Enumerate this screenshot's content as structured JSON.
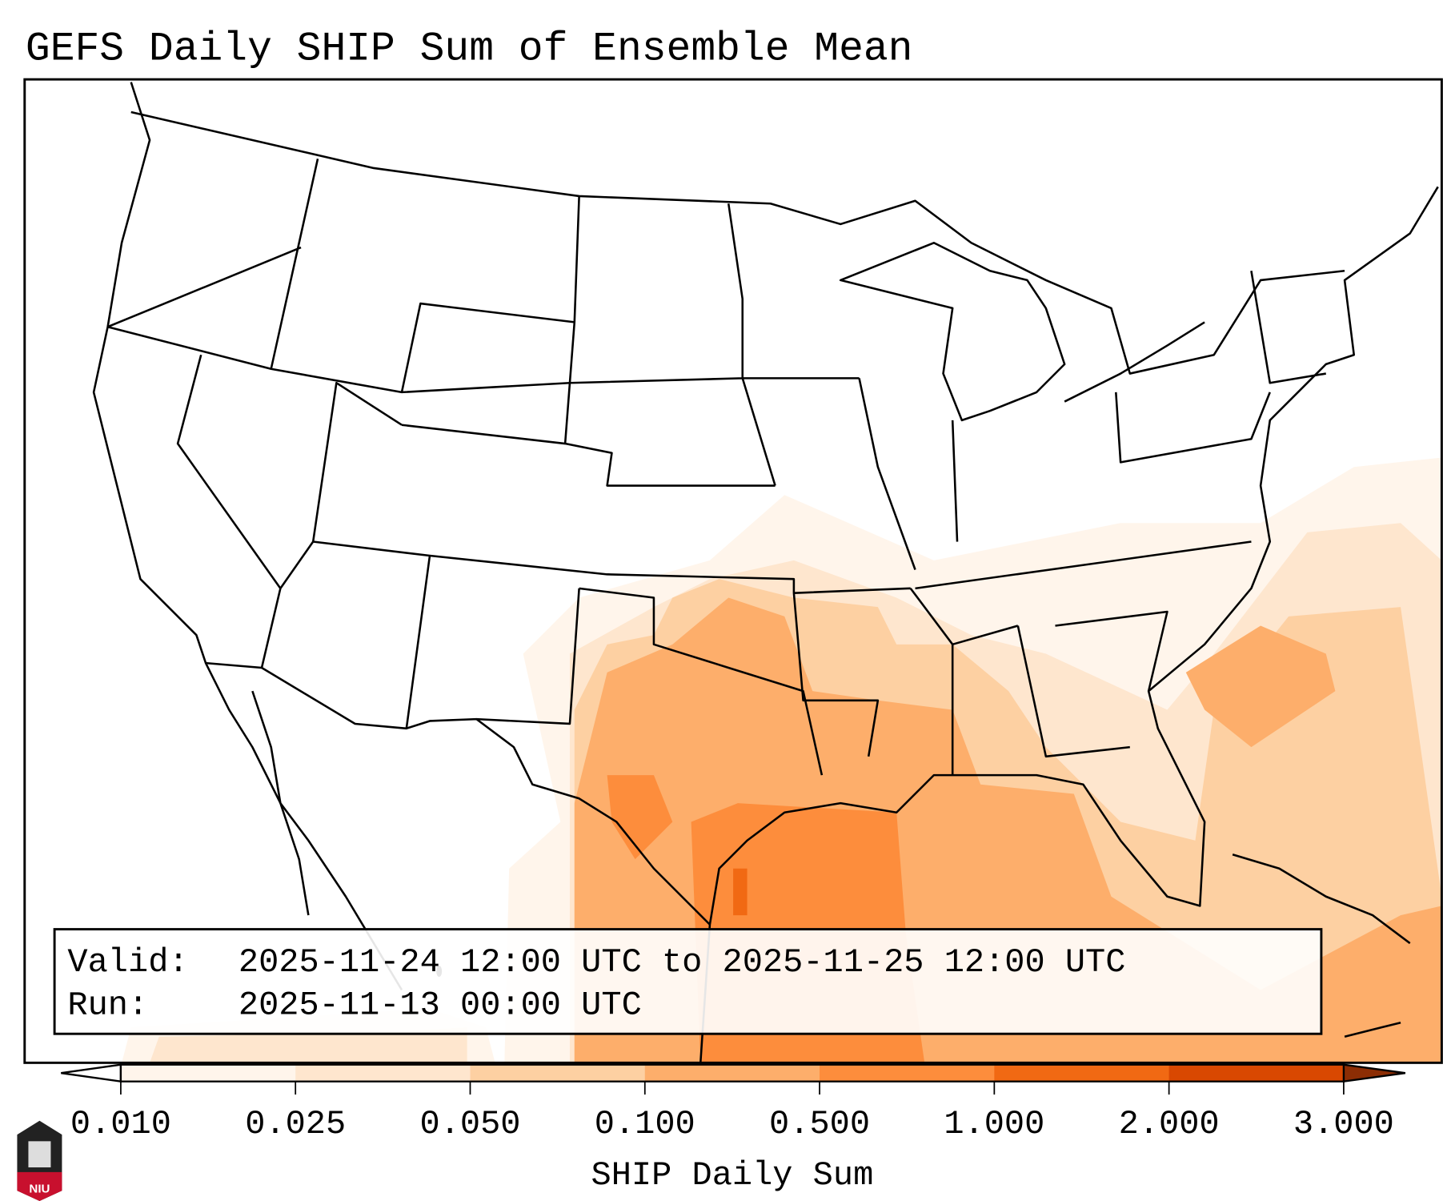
{
  "title": "GEFS Daily SHIP Sum of Ensemble Mean",
  "legend": {
    "valid_label": "Valid:",
    "valid_value": "2025-11-24 12:00 UTC to 2025-11-25 12:00 UTC",
    "run_label": "Run:",
    "run_value": "2025-11-13 00:00 UTC"
  },
  "colorbar": {
    "label": "SHIP Daily Sum",
    "ticks": [
      "0.010",
      "0.025",
      "0.050",
      "0.100",
      "0.500",
      "1.000",
      "2.000",
      "3.000"
    ],
    "colors": [
      "#fff5eb",
      "#fee6ce",
      "#fdd0a2",
      "#fdae6b",
      "#fd8d3c",
      "#f16913",
      "#d94801",
      "#8c2d04"
    ],
    "under_color": "#ffffff",
    "over_color": "#8c2d04"
  },
  "logo": {
    "text": "NIU"
  }
}
